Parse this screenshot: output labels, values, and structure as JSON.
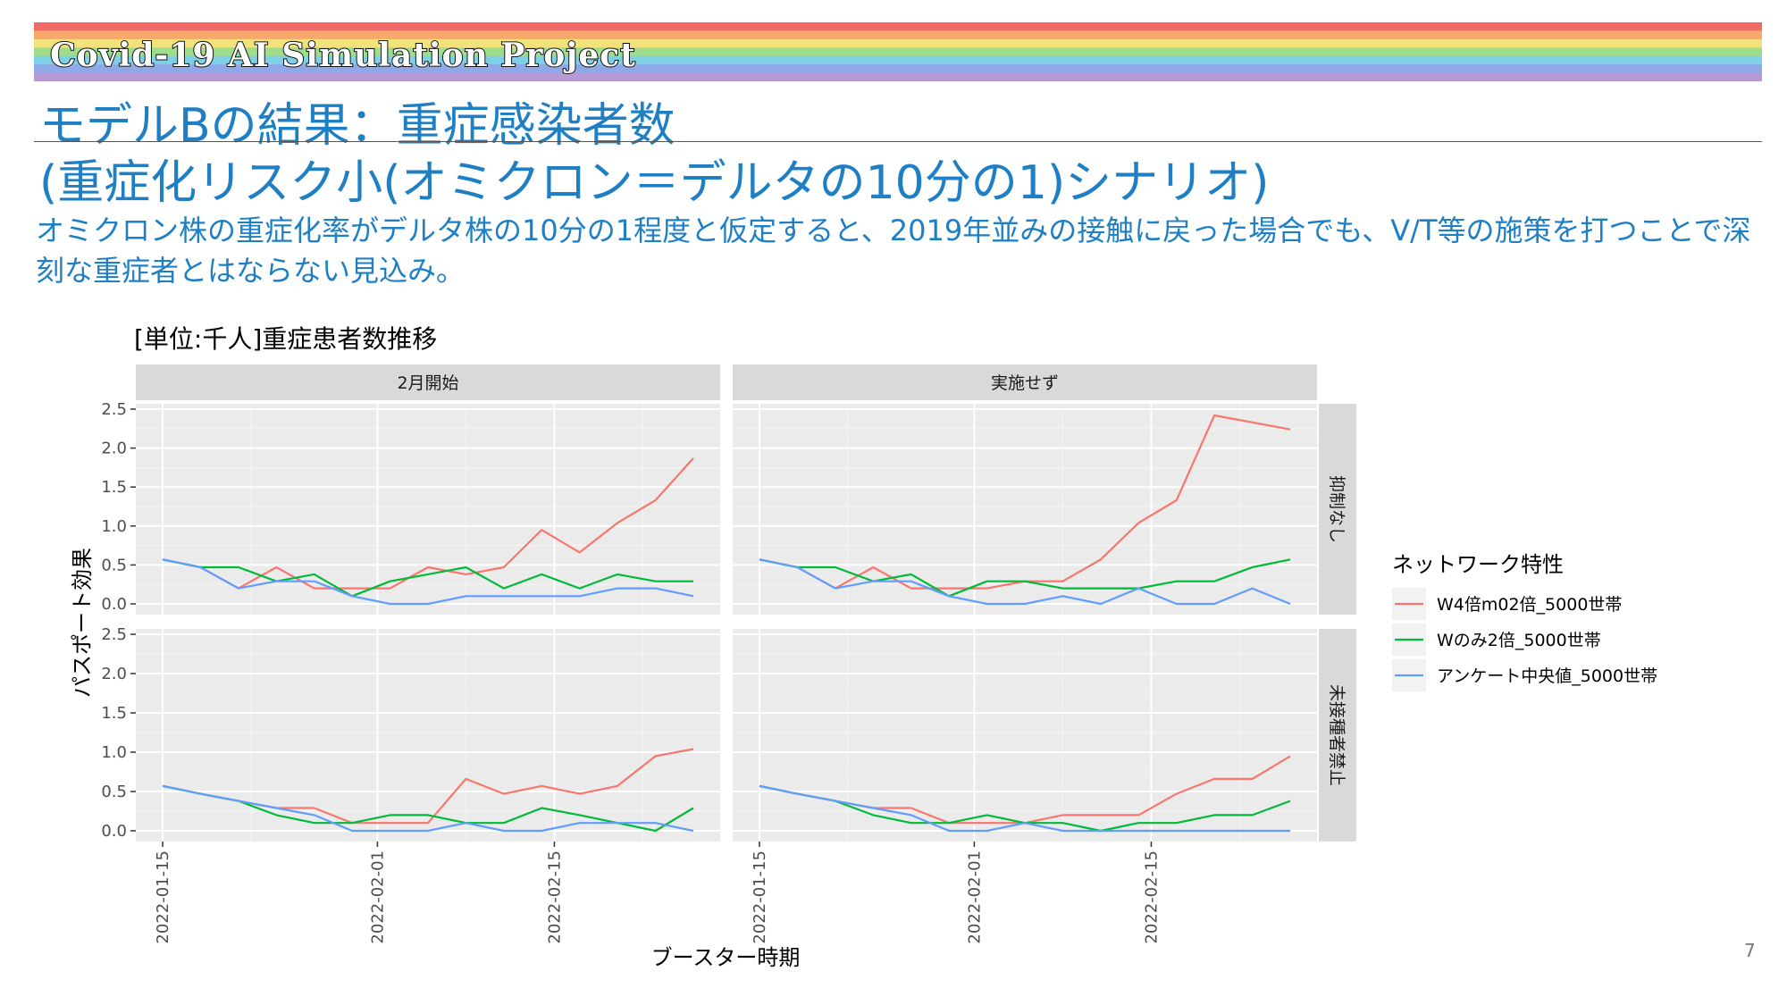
{
  "header": {
    "banner_text": "Covid-19 AI Simulation Project",
    "title_line1": "モデルBの結果：重症感染者数",
    "title_line2": "(重症化リスク小(オミクロン＝デルタの10分の1)シナリオ)",
    "description": "オミクロン株の重症化率がデルタ株の10分の1程度と仮定すると、2019年並みの接触に戻った場合でも、V/T等の施策を打つことで深刻な重症者とはならない見込み。"
  },
  "page_number": "7",
  "colors": {
    "title_blue": "#1f7fc4",
    "panel_bg": "#ebebeb",
    "strip_bg": "#d9d9d9",
    "series_red": "#f8766d",
    "series_green": "#00ba38",
    "series_blue": "#619cff",
    "rainbow": [
      "#f26b6b",
      "#f7a86a",
      "#f3e27a",
      "#9fdc8b",
      "#7fd0e6",
      "#8fa8e8",
      "#b59ad6"
    ]
  },
  "chart_data": {
    "type": "line",
    "title": "[単位:千人]重症患者数推移",
    "xlabel": "ブースター時期",
    "ylabel": "パスポート効果",
    "x": [
      "2022-01-15",
      "2022-01-18",
      "2022-01-21",
      "2022-01-24",
      "2022-01-27",
      "2022-01-30",
      "2022-02-02",
      "2022-02-05",
      "2022-02-08",
      "2022-02-11",
      "2022-02-14",
      "2022-02-17",
      "2022-02-20",
      "2022-02-23",
      "2022-02-26"
    ],
    "x_ticks": [
      "2022-01-15",
      "2022-02-01",
      "2022-02-15"
    ],
    "ylim": [
      0,
      2.5
    ],
    "y_ticks": [
      "0.0",
      "0.5",
      "1.0",
      "1.5",
      "2.0",
      "2.5"
    ],
    "facet_cols": [
      "2月開始",
      "実施せず"
    ],
    "facet_rows": [
      "抑制なし",
      "未接種者禁止"
    ],
    "legend_title": "ネットワーク特性",
    "legend_position": "right",
    "grid": true,
    "series_names": [
      "W4倍m02倍_5000世帯",
      "Wのみ2倍_5000世帯",
      "アンケート中央値_5000世帯"
    ],
    "panels": [
      {
        "col": "2月開始",
        "row": "抑制なし",
        "series": [
          {
            "name": "W4倍m02倍_5000世帯",
            "values": [
              0.57,
              0.47,
              0.2,
              0.47,
              0.2,
              0.2,
              0.2,
              0.47,
              0.38,
              0.47,
              0.95,
              0.66,
              1.04,
              1.33,
              1.87
            ]
          },
          {
            "name": "Wのみ2倍_5000世帯",
            "values": [
              0.57,
              0.47,
              0.47,
              0.29,
              0.38,
              0.1,
              0.29,
              0.38,
              0.47,
              0.2,
              0.38,
              0.2,
              0.38,
              0.29,
              0.29
            ]
          },
          {
            "name": "アンケート中央値_5000世帯",
            "values": [
              0.57,
              0.47,
              0.2,
              0.29,
              0.29,
              0.1,
              0.0,
              0.0,
              0.1,
              0.1,
              0.1,
              0.1,
              0.2,
              0.2,
              0.1
            ]
          }
        ]
      },
      {
        "col": "実施せず",
        "row": "抑制なし",
        "series": [
          {
            "name": "W4倍m02倍_5000世帯",
            "values": [
              0.57,
              0.47,
              0.2,
              0.47,
              0.2,
              0.2,
              0.2,
              0.29,
              0.29,
              0.57,
              1.04,
              1.33,
              2.42,
              2.33,
              2.24
            ]
          },
          {
            "name": "Wのみ2倍_5000世帯",
            "values": [
              0.57,
              0.47,
              0.47,
              0.29,
              0.38,
              0.1,
              0.29,
              0.29,
              0.2,
              0.2,
              0.2,
              0.29,
              0.29,
              0.47,
              0.57
            ]
          },
          {
            "name": "アンケート中央値_5000世帯",
            "values": [
              0.57,
              0.47,
              0.2,
              0.29,
              0.29,
              0.1,
              0.0,
              0.0,
              0.1,
              0.0,
              0.2,
              0.0,
              0.0,
              0.2,
              0.0
            ]
          }
        ]
      },
      {
        "col": "2月開始",
        "row": "未接種者禁止",
        "series": [
          {
            "name": "W4倍m02倍_5000世帯",
            "values": [
              0.57,
              0.47,
              0.38,
              0.29,
              0.29,
              0.1,
              0.1,
              0.1,
              0.66,
              0.47,
              0.57,
              0.47,
              0.57,
              0.95,
              1.04
            ]
          },
          {
            "name": "Wのみ2倍_5000世帯",
            "values": [
              0.57,
              0.47,
              0.38,
              0.2,
              0.1,
              0.1,
              0.2,
              0.2,
              0.1,
              0.1,
              0.29,
              0.2,
              0.1,
              0.0,
              0.29
            ]
          },
          {
            "name": "アンケート中央値_5000世帯",
            "values": [
              0.57,
              0.47,
              0.38,
              0.29,
              0.2,
              0.0,
              0.0,
              0.0,
              0.1,
              0.0,
              0.0,
              0.1,
              0.1,
              0.1,
              0.0
            ]
          }
        ]
      },
      {
        "col": "実施せず",
        "row": "未接種者禁止",
        "series": [
          {
            "name": "W4倍m02倍_5000世帯",
            "values": [
              0.57,
              0.47,
              0.38,
              0.29,
              0.29,
              0.1,
              0.1,
              0.1,
              0.2,
              0.2,
              0.2,
              0.47,
              0.66,
              0.66,
              0.95
            ]
          },
          {
            "name": "Wのみ2倍_5000世帯",
            "values": [
              0.57,
              0.47,
              0.38,
              0.2,
              0.1,
              0.1,
              0.2,
              0.1,
              0.1,
              0.0,
              0.1,
              0.1,
              0.2,
              0.2,
              0.38
            ]
          },
          {
            "name": "アンケート中央値_5000世帯",
            "values": [
              0.57,
              0.47,
              0.38,
              0.29,
              0.2,
              0.0,
              0.0,
              0.1,
              0.0,
              0.0,
              0.0,
              0.0,
              0.0,
              0.0,
              0.0
            ]
          }
        ]
      }
    ]
  }
}
